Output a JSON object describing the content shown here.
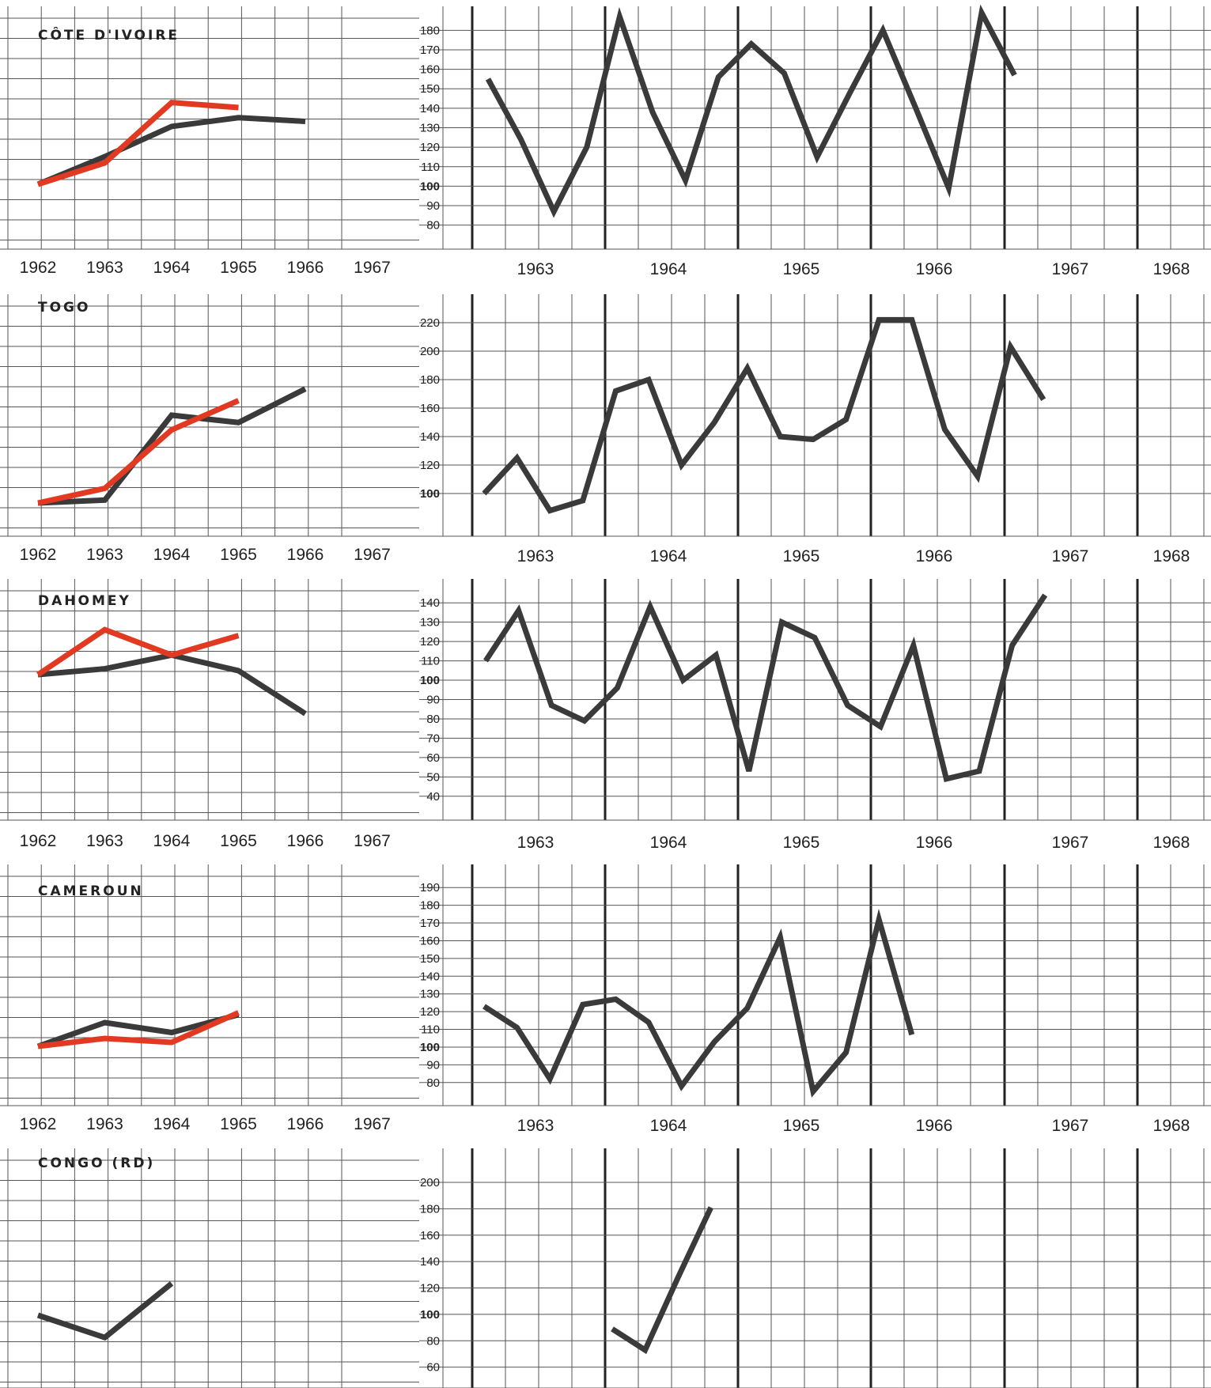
{
  "colors": {
    "series_dark": "#3a3a3a",
    "series_red": "#e23a22",
    "grid": "#555555"
  },
  "chart_data": [
    {
      "type": "line",
      "title": "CÔTE D'IVOIRE",
      "panels": [
        {
          "kind": "annual",
          "x": [
            1962,
            1963,
            1964,
            1965,
            1966
          ],
          "x_tick_labels": [
            "1962",
            "1963",
            "1964",
            "1965",
            "1966",
            "1967"
          ],
          "series": [
            {
              "color": "#3a3a3a",
              "values": [
                100,
                122,
                146,
                153,
                150
              ]
            },
            {
              "color": "#e23a22",
              "values": [
                100,
                117,
                165,
                161
              ]
            }
          ]
        },
        {
          "kind": "quarterly",
          "x_tick_labels": [
            "1963",
            "1964",
            "1965",
            "1966",
            "1967",
            "1968"
          ],
          "y_ticks": [
            80,
            90,
            100,
            110,
            120,
            130,
            140,
            150,
            160,
            170,
            180
          ],
          "ylim": [
            75,
            185
          ],
          "series": [
            {
              "color": "#3a3a3a",
              "values": [
                155,
                124,
                87,
                120,
                187,
                138,
                103,
                156,
                173,
                158,
                115,
                148,
                180,
                140,
                99,
                189,
                157
              ]
            }
          ]
        }
      ]
    },
    {
      "type": "line",
      "title": "TOGO",
      "panels": [
        {
          "kind": "annual",
          "x": [
            1962,
            1963,
            1964,
            1965,
            1966
          ],
          "x_tick_labels": [
            "1962",
            "1963",
            "1964",
            "1965",
            "1966",
            "1967"
          ],
          "series": [
            {
              "color": "#3a3a3a",
              "values": [
                100,
                102,
                160,
                155,
                178
              ]
            },
            {
              "color": "#e23a22",
              "values": [
                100,
                110,
                150,
                170
              ]
            }
          ]
        },
        {
          "kind": "quarterly",
          "x_tick_labels": [
            "1963",
            "1964",
            "1965",
            "1966",
            "1967",
            "1968"
          ],
          "y_ticks": [
            100,
            120,
            140,
            160,
            180,
            200,
            220
          ],
          "ylim": [
            80,
            230
          ],
          "series": [
            {
              "color": "#3a3a3a",
              "values": [
                100,
                125,
                88,
                95,
                172,
                180,
                120,
                150,
                188,
                140,
                138,
                152,
                222,
                222,
                145,
                112,
                203,
                166
              ]
            }
          ]
        }
      ]
    },
    {
      "type": "line",
      "title": "DAHOMEY",
      "panels": [
        {
          "kind": "annual",
          "x": [
            1962,
            1963,
            1964,
            1965,
            1966
          ],
          "x_tick_labels": [
            "1962",
            "1963",
            "1964",
            "1965",
            "1966",
            "1967"
          ],
          "series": [
            {
              "color": "#3a3a3a",
              "values": [
                100,
                103,
                110,
                102,
                80
              ]
            },
            {
              "color": "#e23a22",
              "values": [
                100,
                123,
                110,
                120
              ]
            }
          ]
        },
        {
          "kind": "quarterly",
          "x_tick_labels": [
            "1963",
            "1964",
            "1965",
            "1966",
            "1967",
            "1968"
          ],
          "y_ticks": [
            40,
            50,
            60,
            70,
            80,
            90,
            100,
            110,
            120,
            130,
            140
          ],
          "ylim": [
            35,
            145
          ],
          "series": [
            {
              "color": "#3a3a3a",
              "values": [
                110,
                136,
                87,
                79,
                96,
                138,
                100,
                113,
                53,
                130,
                122,
                87,
                76,
                118,
                49,
                53,
                118,
                144
              ]
            }
          ]
        }
      ]
    },
    {
      "type": "line",
      "title": "CAMEROUN",
      "panels": [
        {
          "kind": "annual",
          "x": [
            1962,
            1963,
            1964,
            1965
          ],
          "x_tick_labels": [
            "1962",
            "1963",
            "1964",
            "1965",
            "1966",
            "1967"
          ],
          "series": [
            {
              "color": "#3a3a3a",
              "values": [
                100,
                112,
                107,
                116
              ]
            },
            {
              "color": "#e23a22",
              "values": [
                100,
                104,
                102,
                117
              ]
            }
          ]
        },
        {
          "kind": "quarterly",
          "x_tick_labels": [
            "1963",
            "1964",
            "1965",
            "1966",
            "1967",
            "1968"
          ],
          "y_ticks": [
            80,
            90,
            100,
            110,
            120,
            130,
            140,
            150,
            160,
            170,
            180,
            190
          ],
          "ylim": [
            75,
            195
          ],
          "series": [
            {
              "color": "#3a3a3a",
              "values": [
                123,
                111,
                82,
                124,
                127,
                114,
                78,
                103,
                122,
                162,
                75,
                97,
                172,
                107
              ]
            }
          ]
        }
      ]
    },
    {
      "type": "line",
      "title": "CONGO (RD)",
      "panels": [
        {
          "kind": "annual",
          "x": [
            1962,
            1963,
            1964
          ],
          "x_tick_labels": [],
          "series": [
            {
              "color": "#3a3a3a",
              "values": [
                100,
                86,
                120
              ]
            }
          ]
        },
        {
          "kind": "quarterly",
          "x_tick_labels": [],
          "y_ticks": [
            60,
            80,
            100,
            120,
            140,
            160,
            180,
            200
          ],
          "ylim": [
            55,
            215
          ],
          "series": [
            {
              "color": "#3a3a3a",
              "values": [
                89,
                73,
                128,
                181
              ]
            }
          ]
        }
      ]
    }
  ]
}
